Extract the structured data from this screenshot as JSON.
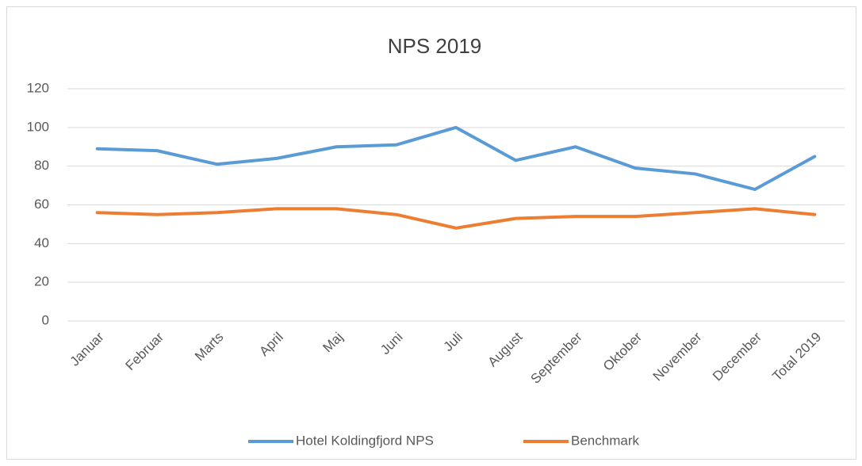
{
  "chart_data": {
    "type": "line",
    "title": "NPS 2019",
    "categories": [
      "Januar",
      "Februar",
      "Marts",
      "April",
      "Maj",
      "Juni",
      "Juli",
      "August",
      "September",
      "Oktober",
      "November",
      "December",
      "Total 2019"
    ],
    "series": [
      {
        "name": "Hotel Koldingfjord NPS",
        "color": "#5b9bd5",
        "values": [
          89,
          88,
          81,
          84,
          90,
          91,
          100,
          83,
          90,
          79,
          76,
          68,
          85
        ]
      },
      {
        "name": "Benchmark",
        "color": "#ed7d31",
        "values": [
          56,
          55,
          56,
          58,
          58,
          55,
          48,
          53,
          54,
          54,
          56,
          58,
          55
        ]
      }
    ],
    "ylim": [
      0,
      120
    ],
    "yticks": [
      0,
      20,
      40,
      60,
      80,
      100,
      120
    ],
    "grid": true,
    "legend": "bottom"
  }
}
